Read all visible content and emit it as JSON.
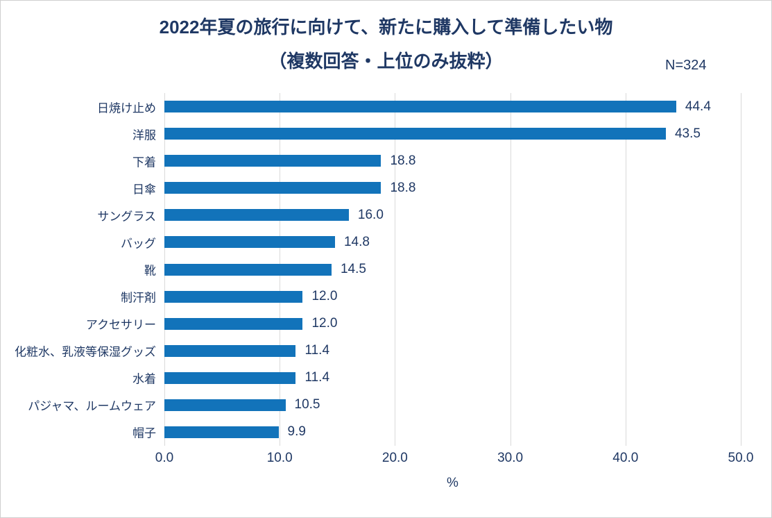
{
  "title": {
    "line1": "2022年夏の旅行に向けて、新たに購入して準備したい物",
    "line2": "（複数回答・上位のみ抜粋）",
    "n_label": "N=324"
  },
  "chart_data": {
    "type": "bar",
    "orientation": "horizontal",
    "title": "2022年夏の旅行に向けて、新たに購入して準備したい物（複数回答・上位のみ抜粋）",
    "categories": [
      "日焼け止め",
      "洋服",
      "下着",
      "日傘",
      "サングラス",
      "バッグ",
      "靴",
      "制汗剤",
      "アクセサリー",
      "化粧水、乳液等保湿グッズ",
      "水着",
      "パジャマ、ルームウェア",
      "帽子"
    ],
    "values": [
      44.4,
      43.5,
      18.8,
      18.8,
      16.0,
      14.8,
      14.5,
      12.0,
      12.0,
      11.4,
      11.4,
      10.5,
      9.9
    ],
    "value_labels": [
      "44.4",
      "43.5",
      "18.8",
      "18.8",
      "16.0",
      "14.8",
      "14.5",
      "12.0",
      "12.0",
      "11.4",
      "11.4",
      "10.5",
      "9.9"
    ],
    "xlabel": "%",
    "ylabel": "",
    "xlim": [
      0,
      50
    ],
    "x_ticks": [
      "0.0",
      "10.0",
      "20.0",
      "30.0",
      "40.0",
      "50.0"
    ],
    "grid": "vertical-only",
    "legend": "none",
    "bar_color": "#1273BA",
    "text_color": "#1F3864",
    "gridline_color": "#D9D9D9"
  }
}
